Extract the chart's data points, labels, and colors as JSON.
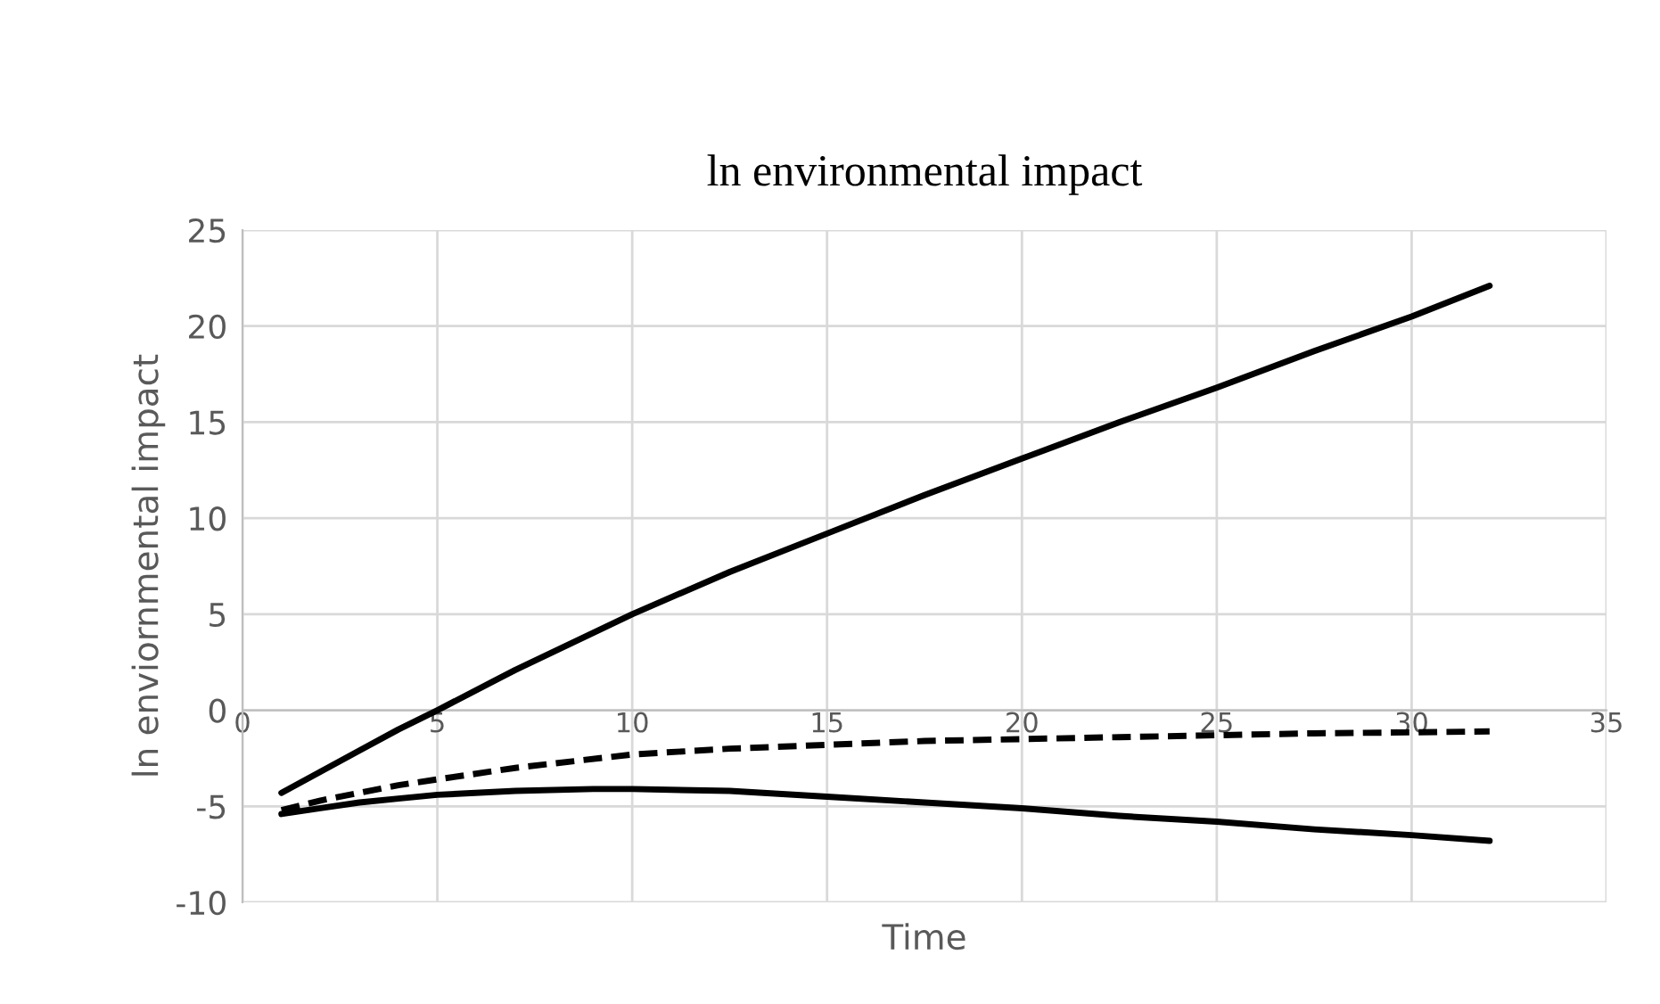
{
  "chart_data": {
    "type": "line",
    "title": "ln environmental impact",
    "xlabel": "Time",
    "ylabel": "ln enviornmental impact",
    "xlim": [
      0,
      35
    ],
    "ylim": [
      -10,
      25
    ],
    "xticks": [
      0,
      5,
      10,
      15,
      20,
      25,
      30,
      35
    ],
    "yticks": [
      -10,
      -5,
      0,
      5,
      10,
      15,
      20,
      25
    ],
    "grid": true,
    "legend": false,
    "series": [
      {
        "color": "#000000",
        "line_style": "solid",
        "x": [
          1,
          2,
          3,
          4,
          5,
          7,
          10,
          12.5,
          15,
          17.5,
          20,
          22.5,
          25,
          27.5,
          30,
          32
        ],
        "values": [
          -4.3,
          -3.2,
          -2.1,
          -1.0,
          0,
          2.1,
          5.0,
          7.2,
          9.2,
          11.2,
          13.1,
          15.0,
          16.8,
          18.7,
          20.5,
          22.1
        ]
      },
      {
        "color": "#000000",
        "line_style": "dashed",
        "x": [
          1,
          2,
          3,
          4,
          5,
          7,
          10,
          12.5,
          15,
          17.5,
          20,
          22.5,
          25,
          27.5,
          30,
          32
        ],
        "values": [
          -5.2,
          -4.7,
          -4.3,
          -3.9,
          -3.6,
          -3.0,
          -2.3,
          -2.0,
          -1.8,
          -1.6,
          -1.5,
          -1.4,
          -1.3,
          -1.2,
          -1.15,
          -1.1
        ]
      },
      {
        "color": "#000000",
        "line_style": "solid",
        "x": [
          1,
          2,
          3,
          4,
          5,
          7,
          9,
          10,
          12.5,
          15,
          17.5,
          20,
          22.5,
          25,
          27.5,
          30,
          32
        ],
        "values": [
          -5.4,
          -5.1,
          -4.8,
          -4.6,
          -4.4,
          -4.2,
          -4.1,
          -4.1,
          -4.2,
          -4.5,
          -4.8,
          -5.1,
          -5.5,
          -5.8,
          -6.2,
          -6.5,
          -6.8
        ]
      }
    ]
  }
}
